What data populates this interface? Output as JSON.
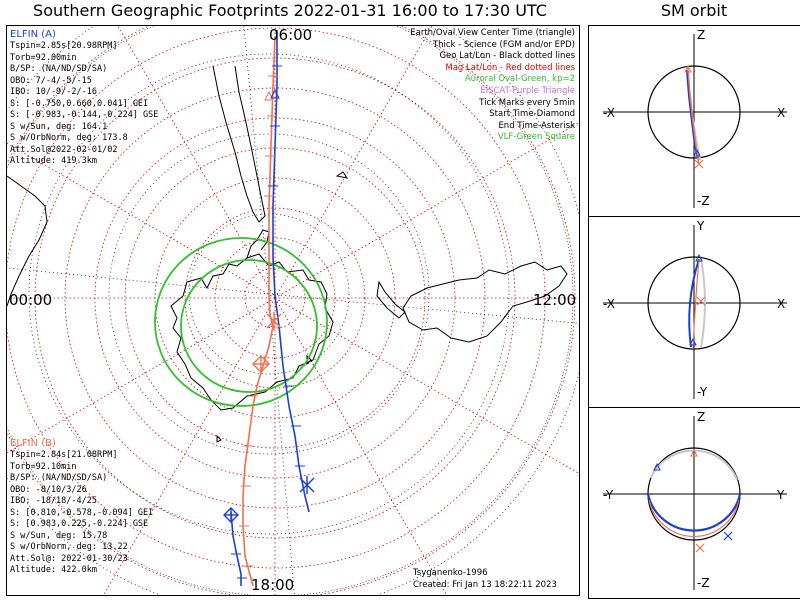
{
  "title": "Southern Geographic Footprints 2022-01-31 16:00 to 17:30 UTC",
  "sm_title": "SM orbit",
  "time_labels": {
    "top": "06:00",
    "left": "00:00",
    "right": "12:00",
    "bottom": "18:00"
  },
  "elfin_a": {
    "header": "ELFIN (A)",
    "color": "#1a3fd6",
    "lines": [
      "Tspin=2.85s[20.98RPM]",
      "Torb=92.00min",
      "B/SP: (NA/ND/SD/SA)",
      "OBO: 7/-4/-5/-15",
      "IBO: 10/-9/-2/-16",
      "S: [-0.750,0.660,0.041] GEI",
      "S: [-0.983,-0.144,-0.224] GSE",
      "S w/Sun, deg: 164.1",
      "S w/OrbNorm, deg: 173.8",
      "Att.Sol@2022-02-01/02",
      "Altitude: 419.3km"
    ]
  },
  "elfin_b": {
    "header": "ELFIN (B)",
    "color": "#f07050",
    "lines": [
      "Tspin=2.84s[21.08RPM]",
      "Torb=92.10min",
      "B/SP: (NA/ND/SD/SA)",
      "OBO: -8/10/3/26",
      "IBO: -18/18/-4/25",
      "S: [0.810,-0.578,-0.094] GEI",
      "S: [0.983,0.225,-0.224] GSE",
      "S w/Sun, deg: 15.78",
      "S w/OrbNorm, deg: 13.22",
      "Att.Sol@: 2022-01-30/23",
      "Altitude: 422.0km"
    ]
  },
  "legend": [
    {
      "text": "Earth/Oval View Center Time (triangle)",
      "color": "#000000"
    },
    {
      "text": "Thick - Science (FGM and/or EPD)",
      "color": "#000000"
    },
    {
      "text": "Geo Lat/Lon - Black dotted lines",
      "color": "#000000"
    },
    {
      "text": "Mag Lat/Lon - Red dotted lines",
      "color": "#e00000"
    },
    {
      "text": "Auroral Oval-Green, kp=2",
      "color": "#30c030"
    },
    {
      "text": "EISCAT-Purple Triangle",
      "color": "#c070e0"
    },
    {
      "text": "Tick Marks every 5min",
      "color": "#000000"
    },
    {
      "text": "Start Time-Diamond",
      "color": "#000000"
    },
    {
      "text": "End Time-Asterisk",
      "color": "#000000"
    },
    {
      "text": "VLF-Green Square",
      "color": "#30c030"
    }
  ],
  "credits": {
    "model": "Tsyganenko-1996",
    "created": "Created: Fri Jan 13 18:22:11 2023"
  },
  "sm_panels": [
    {
      "top": "Z",
      "bottom": "-Z",
      "left": "-X",
      "right": "X"
    },
    {
      "top": "Y",
      "bottom": "-Y",
      "left": "-X",
      "right": "X"
    },
    {
      "top": "Z",
      "bottom": "-Z",
      "left": "-Y",
      "right": "Y"
    }
  ],
  "colors": {
    "mag_grid": "#e00000",
    "geo_grid": "#000000",
    "oval": "#30c030",
    "elfin_a": "#1a3fd6",
    "elfin_b": "#f07050",
    "panel_border": "#000000"
  }
}
